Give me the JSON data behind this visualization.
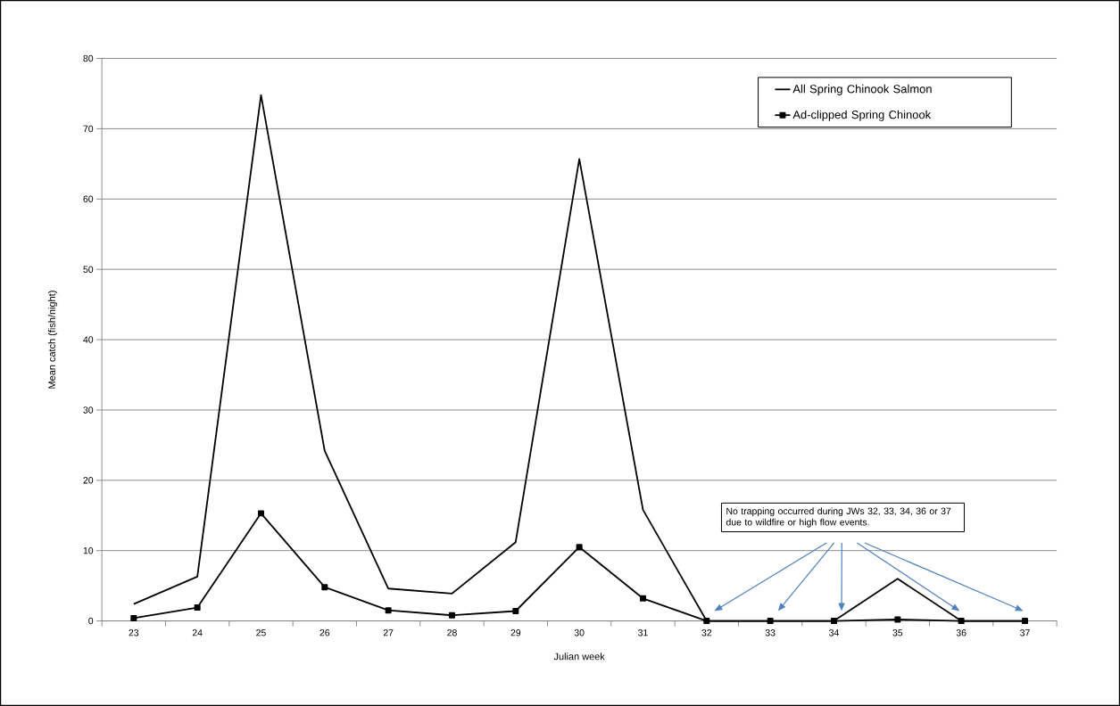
{
  "chart_data": {
    "type": "line",
    "xlabel": "Julian week",
    "ylabel": "Mean catch (fish/night)",
    "categories": [
      "23",
      "24",
      "25",
      "26",
      "27",
      "28",
      "29",
      "30",
      "31",
      "32",
      "33",
      "34",
      "35",
      "36",
      "37"
    ],
    "series": [
      {
        "name": "All Spring Chinook Salmon",
        "color": "#000000",
        "marker": "none",
        "values": [
          2.4,
          6.3,
          74.8,
          24.2,
          4.6,
          3.9,
          11.2,
          65.7,
          15.8,
          0,
          0,
          0,
          6.0,
          0,
          0
        ]
      },
      {
        "name": "Ad-clipped Spring Chinook",
        "color": "#000000",
        "marker": "square",
        "values": [
          0.4,
          1.9,
          15.3,
          4.8,
          1.5,
          0.8,
          1.4,
          10.5,
          3.2,
          0,
          0,
          0,
          0.2,
          0,
          0
        ]
      }
    ],
    "ylim": [
      0,
      80
    ],
    "yticks": [
      0,
      10,
      20,
      30,
      40,
      50,
      60,
      70,
      80
    ],
    "grid": "y",
    "legend": "top right",
    "annotations": [
      "No trapping occurred during JWs 32, 33, 34, 36 or 37 due to wildfire or high flow events."
    ]
  }
}
